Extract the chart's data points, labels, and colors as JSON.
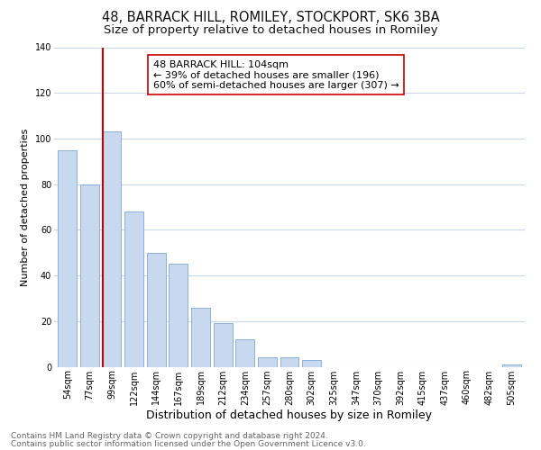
{
  "title": "48, BARRACK HILL, ROMILEY, STOCKPORT, SK6 3BA",
  "subtitle": "Size of property relative to detached houses in Romiley",
  "xlabel": "Distribution of detached houses by size in Romiley",
  "ylabel": "Number of detached properties",
  "bar_labels": [
    "54sqm",
    "77sqm",
    "99sqm",
    "122sqm",
    "144sqm",
    "167sqm",
    "189sqm",
    "212sqm",
    "234sqm",
    "257sqm",
    "280sqm",
    "302sqm",
    "325sqm",
    "347sqm",
    "370sqm",
    "392sqm",
    "415sqm",
    "437sqm",
    "460sqm",
    "482sqm",
    "505sqm"
  ],
  "bar_values": [
    95,
    80,
    103,
    68,
    50,
    45,
    26,
    19,
    12,
    4,
    4,
    3,
    0,
    0,
    0,
    0,
    0,
    0,
    0,
    0,
    1
  ],
  "bar_face_color": "#c8d9ef",
  "bar_edge_color": "#7fa8d0",
  "highlight_bar_index": 2,
  "highlight_line_color": "#cc0000",
  "ylim": [
    0,
    140
  ],
  "yticks": [
    0,
    20,
    40,
    60,
    80,
    100,
    120,
    140
  ],
  "annotation_lines": [
    "48 BARRACK HILL: 104sqm",
    "← 39% of detached houses are smaller (196)",
    "60% of semi-detached houses are larger (307) →"
  ],
  "footnote1": "Contains HM Land Registry data © Crown copyright and database right 2024.",
  "footnote2": "Contains public sector information licensed under the Open Government Licence v3.0.",
  "bg_color": "#ffffff",
  "grid_color": "#c8d8e8",
  "title_fontsize": 10.5,
  "subtitle_fontsize": 9.5,
  "xlabel_fontsize": 9,
  "ylabel_fontsize": 8,
  "tick_fontsize": 7,
  "annotation_fontsize": 8,
  "footnote_fontsize": 6.5
}
